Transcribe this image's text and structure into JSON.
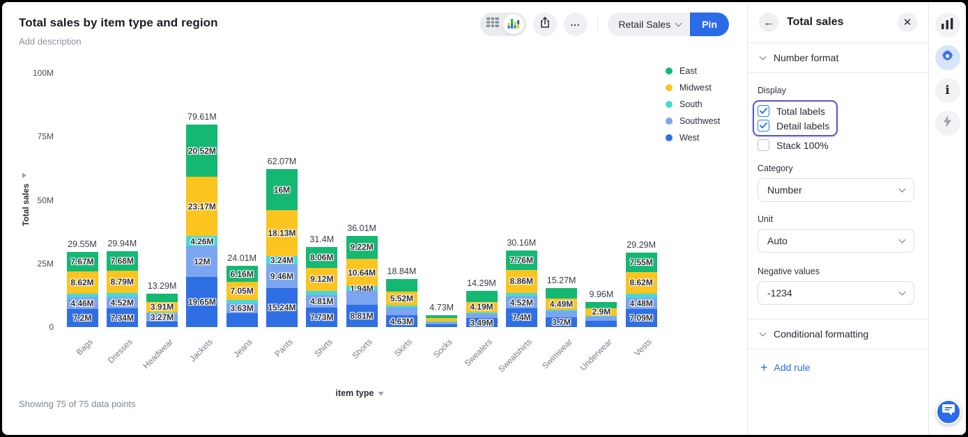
{
  "header": {
    "title": "Total sales by item type and region",
    "description_placeholder": "Add description"
  },
  "toolbar": {
    "dataset_label": "Retail Sales",
    "pin_label": "Pin"
  },
  "chart_data": {
    "type": "bar",
    "stacked": true,
    "title": "Total sales by item type and region",
    "xlabel": "item type",
    "ylabel": "Total sales",
    "footer": "Showing 75 of 75 data points",
    "ylim": [
      0,
      100
    ],
    "yticks": [
      "100M",
      "75M",
      "50M",
      "25M",
      "0"
    ],
    "ytick_values": [
      100,
      75,
      50,
      25,
      0
    ],
    "grid": false,
    "legend_position": "top-right",
    "categories": [
      "Bags",
      "Dresses",
      "Headwear",
      "Jackets",
      "Jeans",
      "Pants",
      "Shirts",
      "Shorts",
      "Skirts",
      "Socks",
      "Sweaters",
      "Sweatshirts",
      "Swimwear",
      "Underwear",
      "Vests"
    ],
    "total_labels": [
      "29.55M",
      "29.94M",
      "13.29M",
      "79.61M",
      "24.01M",
      "62.07M",
      "31.4M",
      "36.01M",
      "18.84M",
      "4.73M",
      "14.29M",
      "30.16M",
      "15.27M",
      "9.96M",
      "29.29M"
    ],
    "series": [
      {
        "name": "East",
        "color": "#14b873",
        "values": [
          7.67,
          7.68,
          3.5,
          20.52,
          6.16,
          16.0,
          8.06,
          9.22,
          4.8,
          1.25,
          4.3,
          7.76,
          4.0,
          2.6,
          7.55
        ],
        "labels": [
          "7.67M",
          "7.68M",
          null,
          "20.52M",
          "6.16M",
          "16M",
          "8.06M",
          "9.22M",
          null,
          null,
          null,
          "7.76M",
          null,
          null,
          "7.55M"
        ]
      },
      {
        "name": "Midwest",
        "color": "#fcc41f",
        "values": [
          8.62,
          8.79,
          3.91,
          23.17,
          7.05,
          18.13,
          9.12,
          10.64,
          5.52,
          1.2,
          4.19,
          8.86,
          4.49,
          2.9,
          8.62
        ],
        "labels": [
          "8.62M",
          "8.79M",
          "3.91M",
          "23.17M",
          "7.05M",
          "18.13M",
          "9.12M",
          "10.64M",
          "5.52M",
          null,
          "4.19M",
          "8.86M",
          "4.49M",
          "2.9M",
          "8.62M"
        ]
      },
      {
        "name": "South",
        "color": "#49d8d8",
        "values": [
          1.6,
          1.61,
          0.5,
          4.26,
          1.59,
          3.24,
          1.68,
          1.94,
          0.8,
          0.3,
          0.5,
          1.62,
          0.5,
          0.3,
          1.55
        ],
        "labels": [
          null,
          null,
          null,
          "4.26M",
          null,
          "3.24M",
          null,
          "1.94M",
          null,
          null,
          null,
          null,
          null,
          null,
          null
        ]
      },
      {
        "name": "Southwest",
        "color": "#7ba5f0",
        "values": [
          4.46,
          4.52,
          3.27,
          12.0,
          3.63,
          9.46,
          4.81,
          5.4,
          3.1,
          0.9,
          1.8,
          4.52,
          2.58,
          1.7,
          4.48
        ],
        "labels": [
          "4.46M",
          "4.52M",
          "3.27M",
          "12M",
          "3.63M",
          "9.46M",
          "4.81M",
          null,
          null,
          null,
          null,
          "4.52M",
          null,
          null,
          "4.48M"
        ]
      },
      {
        "name": "West",
        "color": "#2e6fe4",
        "values": [
          7.2,
          7.34,
          2.11,
          19.65,
          5.58,
          15.24,
          7.73,
          8.81,
          4.63,
          1.08,
          3.49,
          7.4,
          3.7,
          2.46,
          7.09
        ],
        "labels": [
          "7.2M",
          "7.34M",
          null,
          "19.65M",
          null,
          "15.24M",
          "7.73M",
          "8.81M",
          "4.63M",
          null,
          "3.49M",
          "7.4M",
          "3.7M",
          null,
          "7.09M"
        ]
      }
    ]
  },
  "panel": {
    "title": "Total sales",
    "number_format": {
      "label": "Number format",
      "display_label": "Display",
      "checkboxes": [
        {
          "label": "Total labels",
          "checked": true
        },
        {
          "label": "Detail labels",
          "checked": true
        },
        {
          "label": "Stack 100%",
          "checked": false
        }
      ],
      "category_label": "Category",
      "category_value": "Number",
      "unit_label": "Unit",
      "unit_value": "Auto",
      "negative_label": "Negative values",
      "negative_value": "-1234"
    },
    "conditional": {
      "label": "Conditional formatting",
      "add_rule": "Add rule"
    }
  },
  "colors": {
    "accent_blue": "#2b6be8",
    "focus_ring": "#5a57c9"
  }
}
